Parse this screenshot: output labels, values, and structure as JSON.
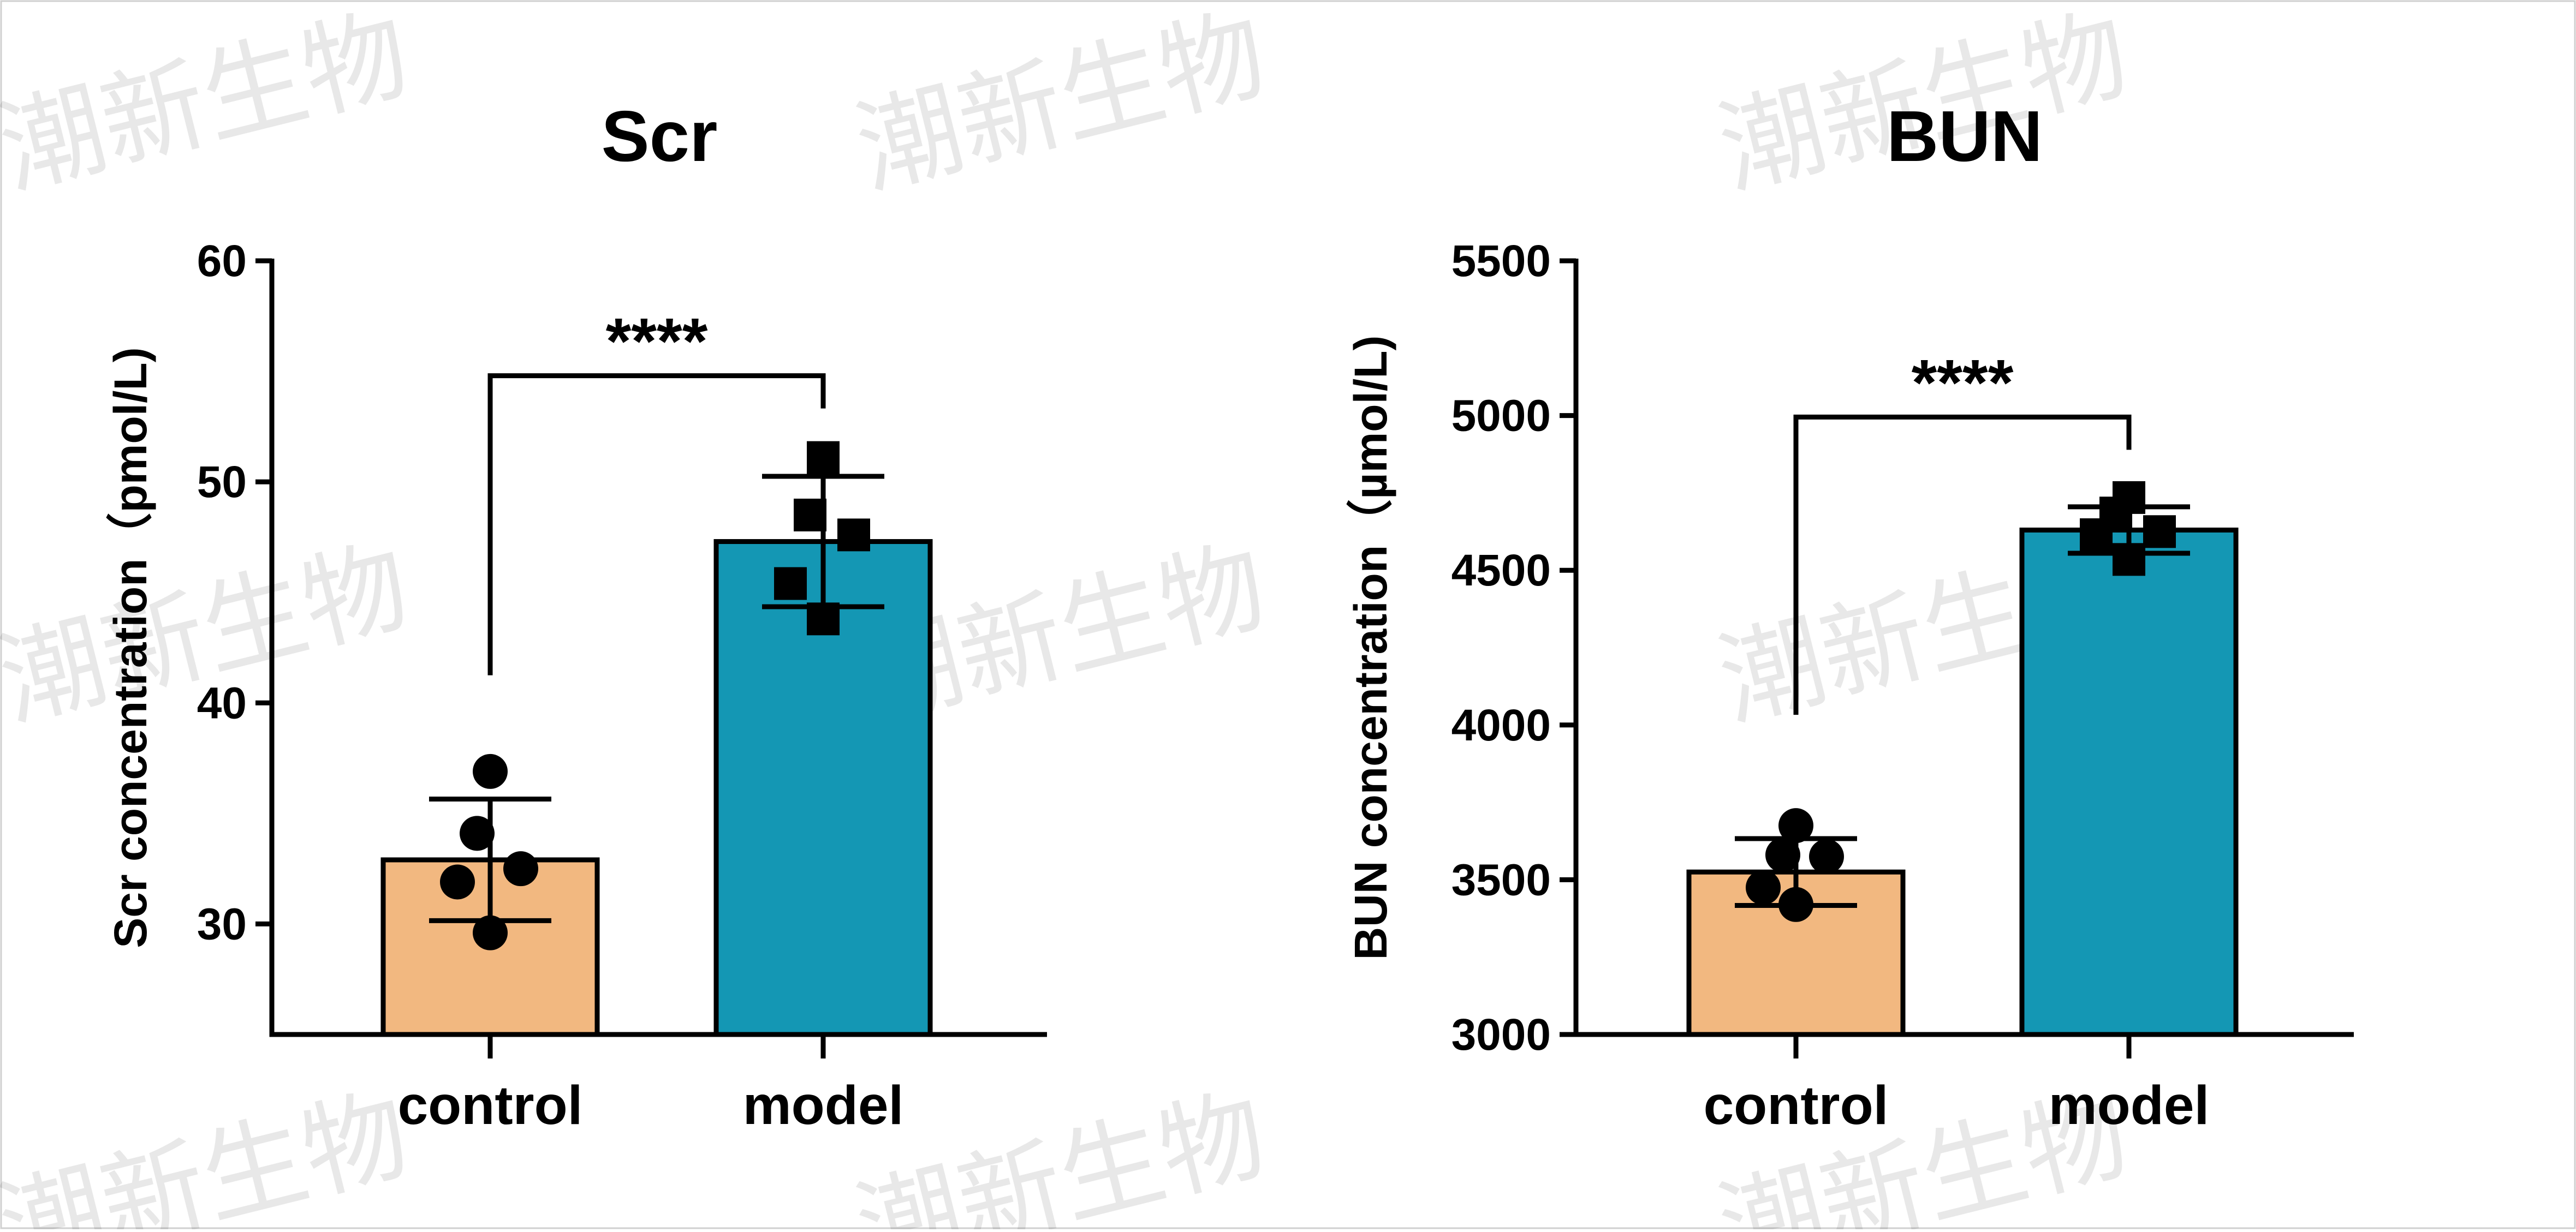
{
  "watermark": {
    "text": "潮新生物"
  },
  "chart_data": [
    {
      "type": "bar",
      "title": "Scr",
      "xlabel": "",
      "ylabel": "Scr concentration（pmol/L)",
      "categories": [
        "control",
        "model"
      ],
      "colors": [
        "#F2B880",
        "#1497B4"
      ],
      "ylim": [
        25,
        60
      ],
      "yticks": [
        30,
        40,
        50,
        60
      ],
      "grid": false,
      "series": [
        {
          "values": [
            32.9,
            47.3
          ],
          "sd": [
            2.75,
            2.95
          ]
        }
      ],
      "points": [
        {
          "category": "control",
          "marker": "circle",
          "values": [
            36.9,
            34.1,
            32.5,
            31.9,
            29.6
          ]
        },
        {
          "category": "model",
          "marker": "square",
          "values": [
            51.1,
            48.5,
            47.6,
            45.4,
            43.8
          ]
        }
      ],
      "significance": {
        "from": "control",
        "to": "model",
        "label": "****",
        "at": 54.8
      }
    },
    {
      "type": "bar",
      "title": "BUN",
      "xlabel": "",
      "ylabel": "BUN concentration（µmol/L)",
      "categories": [
        "control",
        "model"
      ],
      "colors": [
        "#F2B880",
        "#1497B4"
      ],
      "ylim": [
        3000,
        5500
      ],
      "yticks": [
        3000,
        3500,
        4000,
        4500,
        5000,
        5500
      ],
      "grid": false,
      "series": [
        {
          "values": [
            3525,
            4630
          ],
          "sd": [
            108,
            75
          ]
        }
      ],
      "points": [
        {
          "category": "control",
          "marker": "circle",
          "values": [
            3675,
            3580,
            3575,
            3475,
            3420
          ]
        },
        {
          "category": "model",
          "marker": "square",
          "values": [
            4735,
            4685,
            4625,
            4615,
            4535
          ]
        }
      ],
      "significance": {
        "from": "control",
        "to": "model",
        "label": "****",
        "at": 4995
      }
    }
  ]
}
